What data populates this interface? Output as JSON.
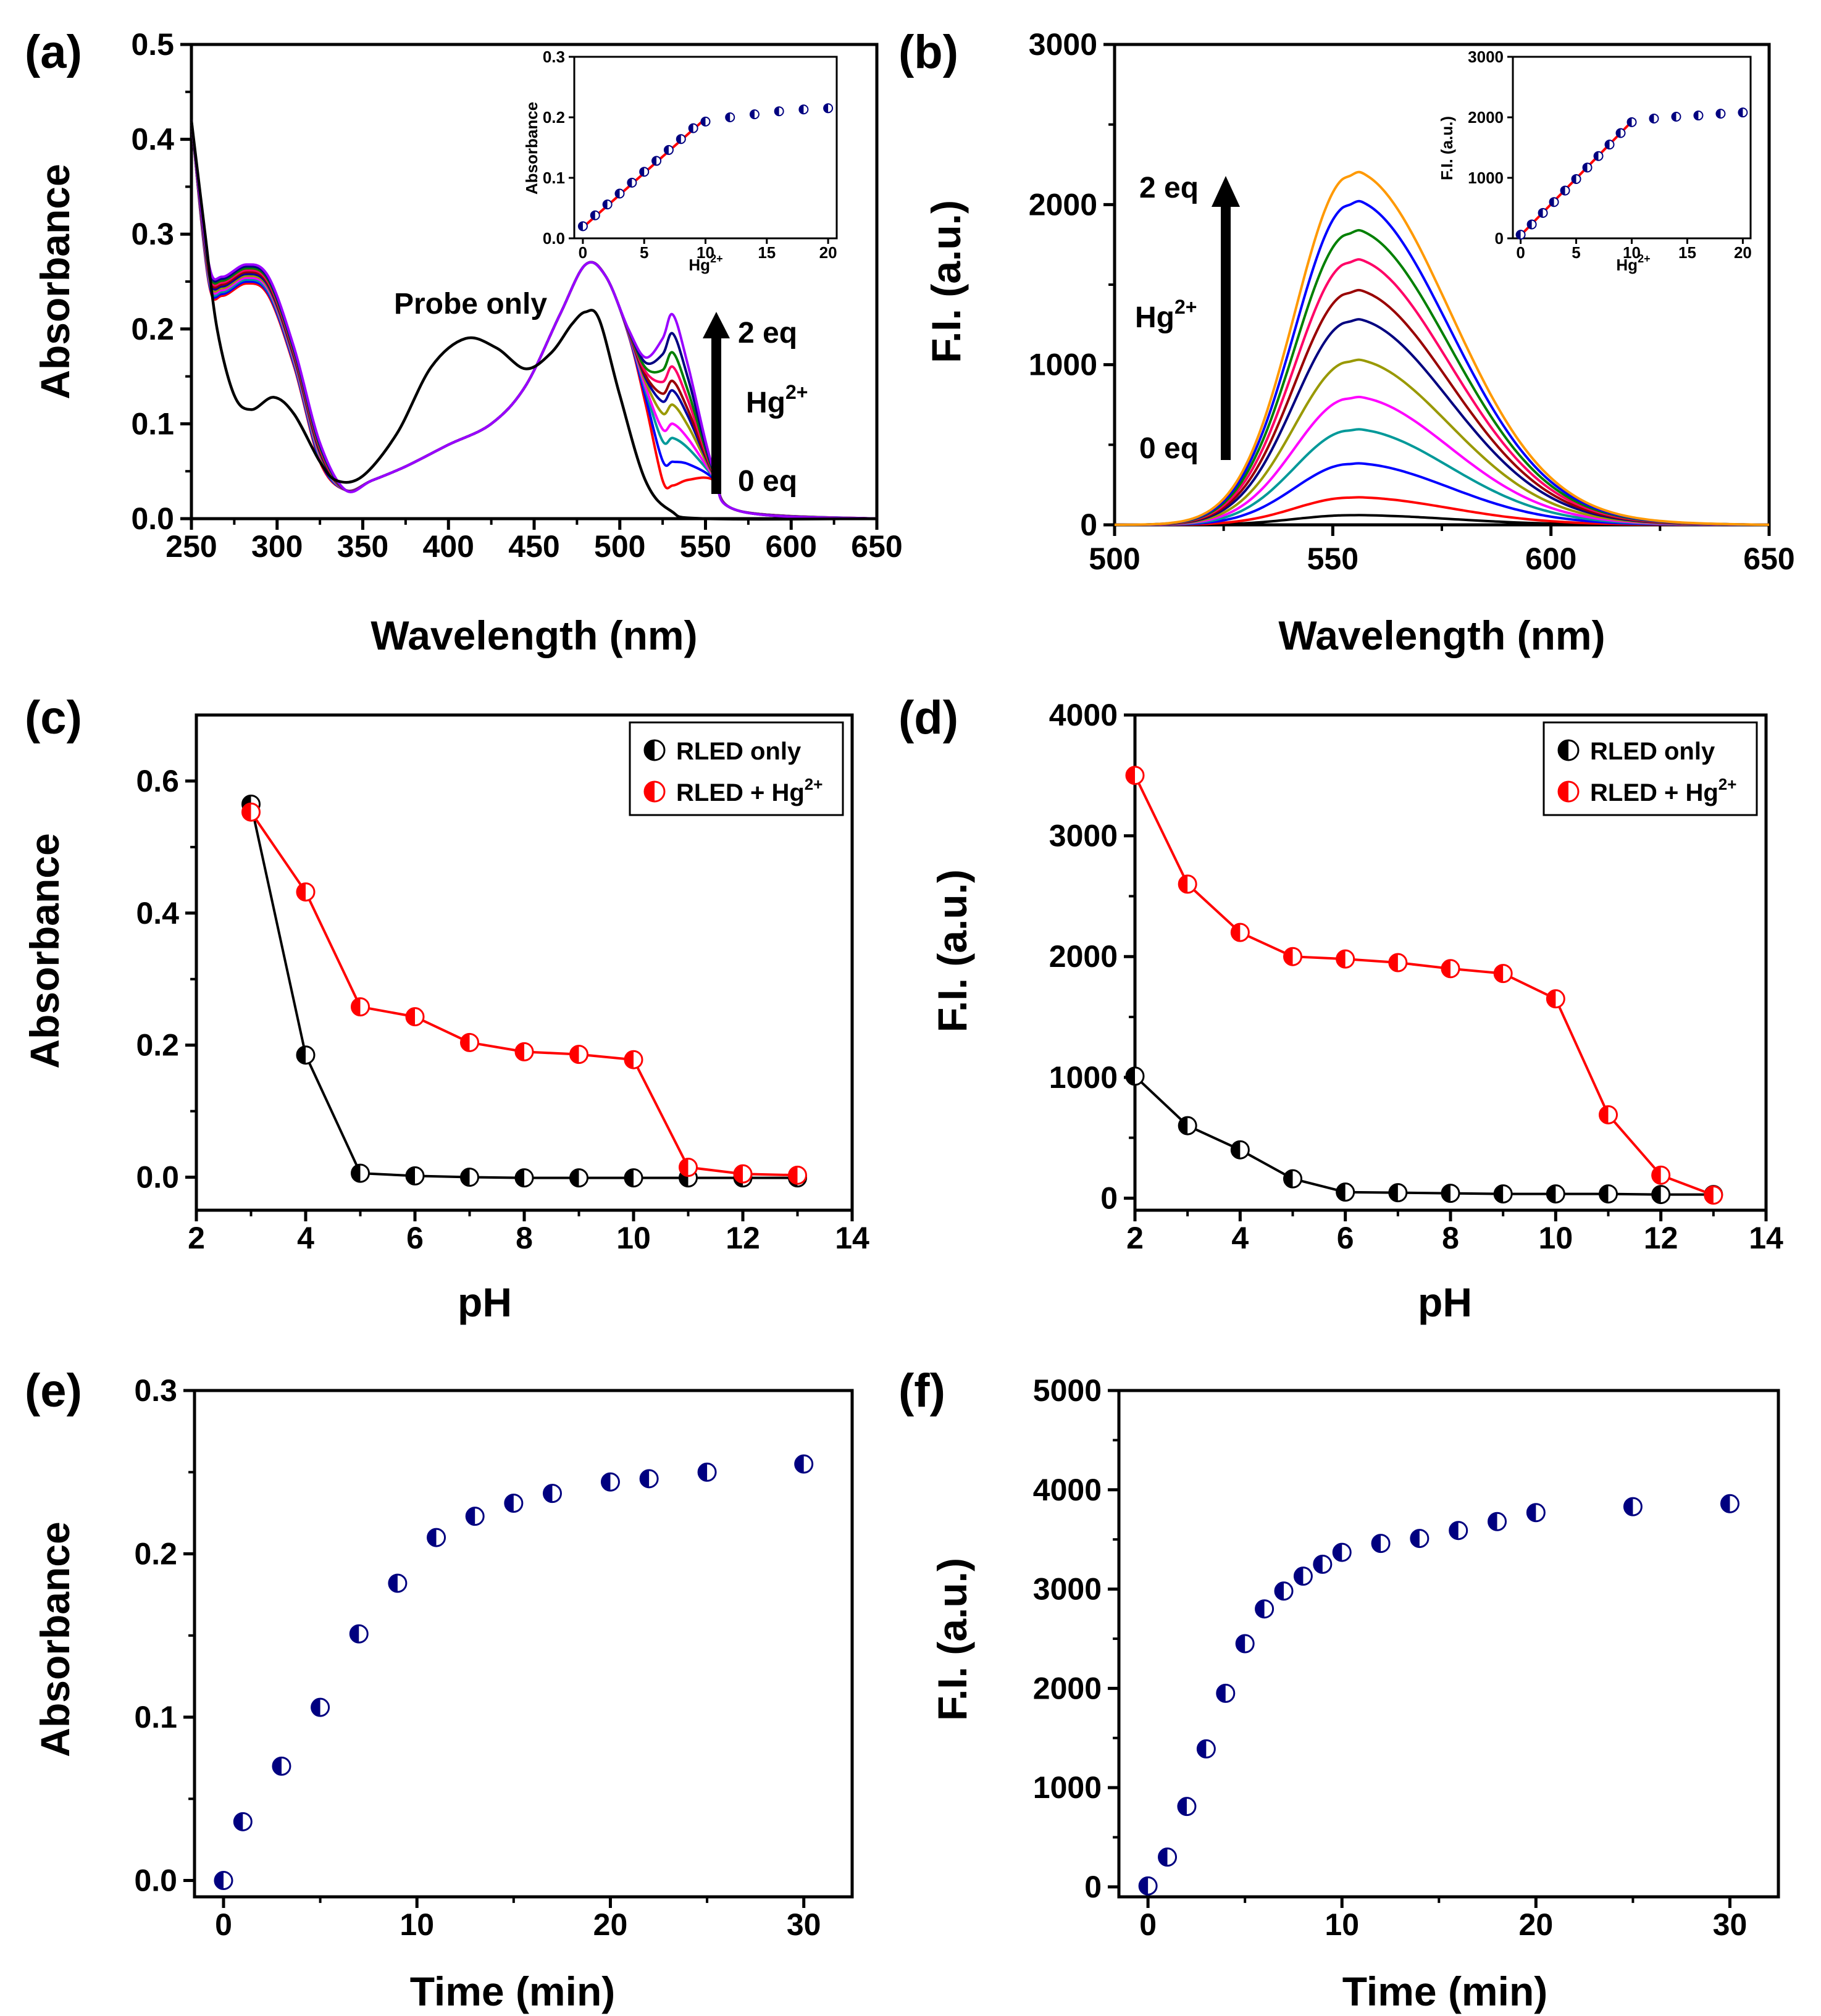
{
  "figure": {
    "background": "#ffffff"
  },
  "panels": [
    {
      "id": "a",
      "label": "(a)",
      "xlabel": "Wavelength (nm)",
      "ylabel": "Absorbance",
      "x_ticks": [
        "250",
        "300",
        "350",
        "400",
        "450",
        "500",
        "550",
        "600",
        "650"
      ],
      "y_ticks": [
        "0.0",
        "0.1",
        "0.2",
        "0.3",
        "0.4",
        "0.5"
      ],
      "annotations": {
        "probe": "Probe only",
        "top": "2 eq",
        "bottom": "0 eq",
        "ion": "Hg",
        "charge": "2+"
      },
      "inset": {
        "xlabel": "Hg",
        "xlabel_sup": "2+",
        "ylabel": "Absorbance",
        "x_ticks": [
          "0",
          "5",
          "10",
          "15",
          "20"
        ],
        "y_ticks": [
          "0.0",
          "0.1",
          "0.2",
          "0.3"
        ]
      }
    },
    {
      "id": "b",
      "label": "(b)",
      "xlabel": "Wavelength (nm)",
      "ylabel": "F.I. (a.u.)",
      "x_ticks": [
        "500",
        "550",
        "600",
        "650"
      ],
      "y_ticks": [
        "0",
        "1000",
        "2000",
        "3000"
      ],
      "annotations": {
        "top": "2 eq",
        "bottom": "0 eq",
        "ion": "Hg",
        "charge": "2+"
      },
      "inset": {
        "xlabel": "Hg",
        "xlabel_sup": "2+",
        "ylabel": "F.I. (a.u.)",
        "x_ticks": [
          "0",
          "5",
          "10",
          "15",
          "20"
        ],
        "y_ticks": [
          "0",
          "1000",
          "2000",
          "3000"
        ]
      }
    },
    {
      "id": "c",
      "label": "(c)",
      "xlabel": "pH",
      "ylabel": "Absorbance",
      "x_ticks": [
        "2",
        "4",
        "6",
        "8",
        "10",
        "12",
        "14"
      ],
      "y_ticks": [
        "0.0",
        "0.2",
        "0.4",
        "0.6"
      ],
      "legend": {
        "item1": "RLED only",
        "item2": "RLED + Hg",
        "item2_sup": "2+"
      }
    },
    {
      "id": "d",
      "label": "(d)",
      "xlabel": "pH",
      "ylabel": "F.I. (a.u.)",
      "x_ticks": [
        "2",
        "4",
        "6",
        "8",
        "10",
        "12",
        "14"
      ],
      "y_ticks": [
        "0",
        "1000",
        "2000",
        "3000",
        "4000"
      ],
      "legend": {
        "item1": "RLED only",
        "item2": "RLED + Hg",
        "item2_sup": "2+"
      }
    },
    {
      "id": "e",
      "label": "(e)",
      "xlabel": "Time (min)",
      "ylabel": "Absorbance",
      "x_ticks": [
        "0",
        "10",
        "20",
        "30"
      ],
      "y_ticks": [
        "0.0",
        "0.1",
        "0.2",
        "0.3"
      ]
    },
    {
      "id": "f",
      "label": "(f)",
      "xlabel": "Time (min)",
      "ylabel": "F.I. (a.u.)",
      "x_ticks": [
        "0",
        "10",
        "20",
        "30"
      ],
      "y_ticks": [
        "0",
        "1000",
        "2000",
        "3000",
        "4000",
        "5000"
      ]
    }
  ],
  "chart_data": [
    {
      "panel": "a",
      "type": "line",
      "title": "",
      "xlabel": "Wavelength (nm)",
      "ylabel": "Absorbance",
      "xlim": [
        250,
        650
      ],
      "ylim": [
        0,
        0.5
      ],
      "grid": false,
      "series_colors": [
        "#000000",
        "#ff0000",
        "#0000ff",
        "#009999",
        "#ff00ff",
        "#999900",
        "#0000a0",
        "#990000",
        "#ff0066",
        "#008000",
        "#000080",
        "#9900ff"
      ],
      "probe_only": [
        [
          250,
          0.42
        ],
        [
          258,
          0.3
        ],
        [
          265,
          0.2
        ],
        [
          275,
          0.13
        ],
        [
          285,
          0.115
        ],
        [
          298,
          0.128
        ],
        [
          310,
          0.11
        ],
        [
          325,
          0.06
        ],
        [
          335,
          0.04
        ],
        [
          350,
          0.045
        ],
        [
          370,
          0.09
        ],
        [
          390,
          0.16
        ],
        [
          410,
          0.19
        ],
        [
          428,
          0.18
        ],
        [
          445,
          0.158
        ],
        [
          460,
          0.175
        ],
        [
          472,
          0.205
        ],
        [
          480,
          0.218
        ],
        [
          488,
          0.21
        ],
        [
          500,
          0.13
        ],
        [
          515,
          0.04
        ],
        [
          530,
          0.008
        ],
        [
          550,
          0.0
        ],
        [
          650,
          0.0
        ]
      ],
      "hg_added_shape": [
        [
          250,
          0.42
        ],
        [
          260,
          0.27
        ],
        [
          268,
          0.255
        ],
        [
          282,
          0.268
        ],
        [
          295,
          0.255
        ],
        [
          310,
          0.18
        ],
        [
          325,
          0.08
        ],
        [
          340,
          0.03
        ],
        [
          355,
          0.04
        ],
        [
          375,
          0.055
        ],
        [
          400,
          0.078
        ],
        [
          425,
          0.1
        ],
        [
          445,
          0.14
        ],
        [
          465,
          0.215
        ],
        [
          480,
          0.268
        ],
        [
          492,
          0.255
        ],
        [
          505,
          0.2
        ],
        [
          515,
          0.17
        ],
        [
          525,
          0.19
        ],
        [
          531,
          0.215
        ],
        [
          540,
          0.16
        ],
        [
          555,
          0.05
        ],
        [
          570,
          0.008
        ],
        [
          650,
          0.0
        ]
      ],
      "peak_531_by_equivalent": [
        0.035,
        0.06,
        0.085,
        0.1,
        0.12,
        0.135,
        0.145,
        0.16,
        0.175,
        0.195,
        0.215
      ]
    },
    {
      "panel": "a-inset",
      "type": "scatter",
      "xlabel": "Hg2+",
      "ylabel": "Absorbance",
      "xlim": [
        0,
        20.7
      ],
      "ylim": [
        0,
        0.3
      ],
      "x": [
        0,
        1,
        2,
        3,
        4,
        5,
        6,
        7,
        8,
        9,
        10,
        12,
        14,
        16,
        18,
        20
      ],
      "y": [
        0.02,
        0.038,
        0.056,
        0.074,
        0.092,
        0.11,
        0.128,
        0.146,
        0.164,
        0.182,
        0.193,
        0.2,
        0.205,
        0.21,
        0.213,
        0.215
      ],
      "fit_line": {
        "x": [
          0,
          10
        ],
        "y": [
          0.018,
          0.198
        ],
        "color": "#ff0000"
      }
    },
    {
      "panel": "b",
      "type": "line",
      "title": "",
      "xlabel": "Wavelength (nm)",
      "ylabel": "F.I. (a.u.)",
      "xlim": [
        500,
        650
      ],
      "ylim": [
        0,
        3000
      ],
      "grid": false,
      "peak_position_nm": 554,
      "peak_intensities": [
        60,
        170,
        380,
        590,
        790,
        1020,
        1270,
        1450,
        1640,
        1820,
        2000,
        2180
      ],
      "series_colors": [
        "#000000",
        "#ff0000",
        "#0000ff",
        "#009999",
        "#ff00ff",
        "#999900",
        "#000080",
        "#990000",
        "#ff0066",
        "#008000",
        "#0000ff",
        "#ff9900"
      ]
    },
    {
      "panel": "b-inset",
      "type": "scatter",
      "xlabel": "Hg2+",
      "ylabel": "F.I. (a.u.)",
      "xlim": [
        0,
        20.7
      ],
      "ylim": [
        0,
        3000
      ],
      "x": [
        0,
        1,
        2,
        3,
        4,
        5,
        6,
        7,
        8,
        9,
        10,
        12,
        14,
        16,
        18,
        20
      ],
      "y": [
        60,
        230,
        420,
        600,
        790,
        980,
        1170,
        1360,
        1550,
        1740,
        1920,
        1980,
        2010,
        2030,
        2060,
        2080
      ],
      "fit_line": {
        "x": [
          0,
          10
        ],
        "y": [
          50,
          1930
        ],
        "color": "#ff0000"
      }
    },
    {
      "panel": "c",
      "type": "line",
      "xlabel": "pH",
      "ylabel": "Absorbance",
      "xlim": [
        2,
        14
      ],
      "ylim": [
        -0.05,
        0.7
      ],
      "series": [
        {
          "name": "RLED only",
          "color": "#000000",
          "x": [
            3,
            4,
            5,
            6,
            7,
            8,
            9,
            10,
            11,
            12,
            13
          ],
          "values": [
            0.565,
            0.185,
            0.006,
            0.002,
            0.0,
            -0.001,
            -0.001,
            -0.001,
            -0.001,
            -0.001,
            -0.001
          ]
        },
        {
          "name": "RLED + Hg2+",
          "color": "#ff0000",
          "x": [
            3,
            4,
            5,
            6,
            7,
            8,
            9,
            10,
            11,
            12,
            13
          ],
          "values": [
            0.553,
            0.432,
            0.258,
            0.243,
            0.204,
            0.19,
            0.186,
            0.178,
            0.015,
            0.005,
            0.003
          ]
        }
      ]
    },
    {
      "panel": "d",
      "type": "line",
      "xlabel": "pH",
      "ylabel": "F.I. (a.u.)",
      "xlim": [
        2,
        14
      ],
      "ylim": [
        -100,
        4000
      ],
      "series": [
        {
          "name": "RLED only",
          "color": "#000000",
          "x": [
            2,
            3,
            4,
            5,
            6,
            7,
            8,
            9,
            10,
            11,
            12,
            13
          ],
          "values": [
            1010,
            600,
            400,
            160,
            50,
            45,
            40,
            35,
            35,
            35,
            30,
            30
          ]
        },
        {
          "name": "RLED + Hg2+",
          "color": "#ff0000",
          "x": [
            2,
            3,
            4,
            5,
            6,
            7,
            8,
            9,
            10,
            11,
            12,
            13
          ],
          "values": [
            3500,
            2600,
            2200,
            2000,
            1980,
            1950,
            1900,
            1860,
            1650,
            690,
            190,
            25
          ]
        }
      ]
    },
    {
      "panel": "e",
      "type": "scatter",
      "xlabel": "Time (min)",
      "ylabel": "Absorbance",
      "xlim": [
        -1.5,
        32.5
      ],
      "ylim": [
        -0.01,
        0.3
      ],
      "x": [
        0,
        1,
        3,
        5,
        7,
        9,
        11,
        13,
        15,
        17,
        20,
        22,
        25,
        30
      ],
      "y": [
        0.0,
        0.036,
        0.07,
        0.106,
        0.151,
        0.182,
        0.21,
        0.223,
        0.231,
        0.237,
        0.244,
        0.246,
        0.25,
        0.255
      ],
      "marker_color": "#000080"
    },
    {
      "panel": "f",
      "type": "scatter",
      "xlabel": "Time (min)",
      "ylabel": "F.I. (a.u.)",
      "xlim": [
        -1.5,
        32.5
      ],
      "ylim": [
        -100,
        5000
      ],
      "x": [
        0,
        1,
        2,
        3,
        4,
        5,
        6,
        7,
        8,
        9,
        10,
        12,
        14,
        16,
        18,
        20,
        25,
        30
      ],
      "y": [
        10,
        300,
        810,
        1390,
        1950,
        2450,
        2800,
        2980,
        3130,
        3250,
        3370,
        3460,
        3510,
        3590,
        3680,
        3770,
        3830,
        3860
      ],
      "marker_color": "#000080"
    }
  ]
}
